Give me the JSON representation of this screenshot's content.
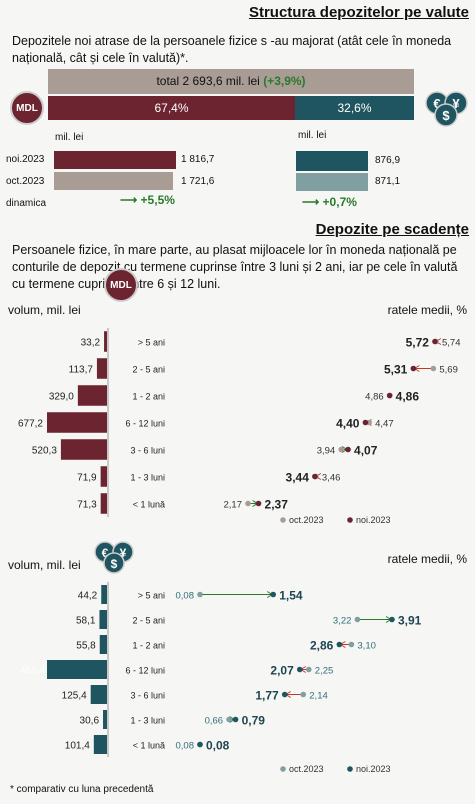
{
  "title": "Structura depozitelor pe valute",
  "intro": "Depozitele noi atrase de la persoanele fizice s -au majorat (atât cele în moneda națională, cât și cele în valută)*.",
  "total_bar": {
    "label": "total 2 693,6 mil. lei",
    "change": "(+3,9%)",
    "mdl_share": "67,4%",
    "fx_share": "32,6%",
    "mdl_fraction": 0.674
  },
  "badges": {
    "mdl": "MDL",
    "fx_icon": "currency-icon"
  },
  "unit": "mil. lei",
  "rows": [
    {
      "label": "noi.2023",
      "mdl": "1 816,7",
      "fx": "876,9"
    },
    {
      "label": "oct.2023",
      "mdl": "1 721,6",
      "fx": "871,1"
    },
    {
      "label": "dinamica",
      "mdl": "+5,5%",
      "fx": "+0,7%"
    }
  ],
  "section2_title": "Depozite pe scadențe",
  "section2_intro": "Persoanele fizice, în mare parte, au plasat mijloacele lor în moneda națională pe conturile de depozit cu termene cuprinse între 3 luni și 2 ani, iar pe cele în valută cu termene cuprinse între 6 și 12 luni.",
  "left_axis": "volum, mil. lei",
  "right_axis": "ratele medii, %",
  "legend": {
    "oct": "oct.2023",
    "nov": "noi.2023"
  },
  "footnote": "* comparativ cu luna precedentă",
  "colors": {
    "mdl": "#6b2430",
    "fx": "#1f5560",
    "mdl_oct": "#a89c94",
    "fx_oct": "#7f9fa0",
    "arrow_green": "#2a7a2a",
    "arrow_red": "#c0392b"
  },
  "chart_data": [
    {
      "type": "bar",
      "currency": "MDL",
      "categories": [
        "> 5 ani",
        "2 - 5 ani",
        "1 - 2 ani",
        "6 - 12 luni",
        "3 - 6 luni",
        "1 - 3 luni",
        "< 1 lună"
      ],
      "volume": [
        33.2,
        113.7,
        329.0,
        677.2,
        520.3,
        71.9,
        71.3
      ],
      "volume_labels": [
        "33,2",
        "113,7",
        "329,0",
        "677,2",
        "520,3",
        "71,9",
        "71,3"
      ],
      "rate_oct": [
        5.74,
        5.69,
        4.86,
        4.47,
        3.94,
        3.46,
        2.17
      ],
      "rate_nov": [
        5.72,
        5.31,
        4.86,
        4.4,
        4.07,
        3.44,
        2.37
      ],
      "rate_oct_labels": [
        "5,74",
        "5,69",
        "4,86",
        "4,47",
        "3,94",
        "3,46",
        "2,17"
      ],
      "rate_nov_labels": [
        "5,72",
        "5,31",
        "4,86",
        "4,40",
        "4,07",
        "3,44",
        "2,37"
      ]
    },
    {
      "type": "bar",
      "currency": "FX",
      "categories": [
        "> 5 ani",
        "2 - 5 ani",
        "1 - 2 ani",
        "6 - 12 luni",
        "3 - 6 luni",
        "1 - 3 luni",
        "< 1 lună"
      ],
      "volume": [
        44.2,
        58.1,
        55.8,
        461.4,
        125.4,
        30.6,
        101.4
      ],
      "volume_labels": [
        "44,2",
        "58,1",
        "55,8",
        "461,4",
        "125,4",
        "30,6",
        "101,4"
      ],
      "rate_oct": [
        0.08,
        3.22,
        3.1,
        2.25,
        2.14,
        0.66,
        0.08
      ],
      "rate_nov": [
        1.54,
        3.91,
        2.86,
        2.07,
        1.77,
        0.79,
        0.08
      ],
      "rate_oct_labels": [
        "0,08",
        "3,22",
        "3,10",
        "2,25",
        "2,14",
        "0,66",
        "0,08"
      ],
      "rate_nov_labels": [
        "1,54",
        "3,91",
        "2,86",
        "2,07",
        "1,77",
        "0,79",
        "0,08"
      ]
    }
  ]
}
